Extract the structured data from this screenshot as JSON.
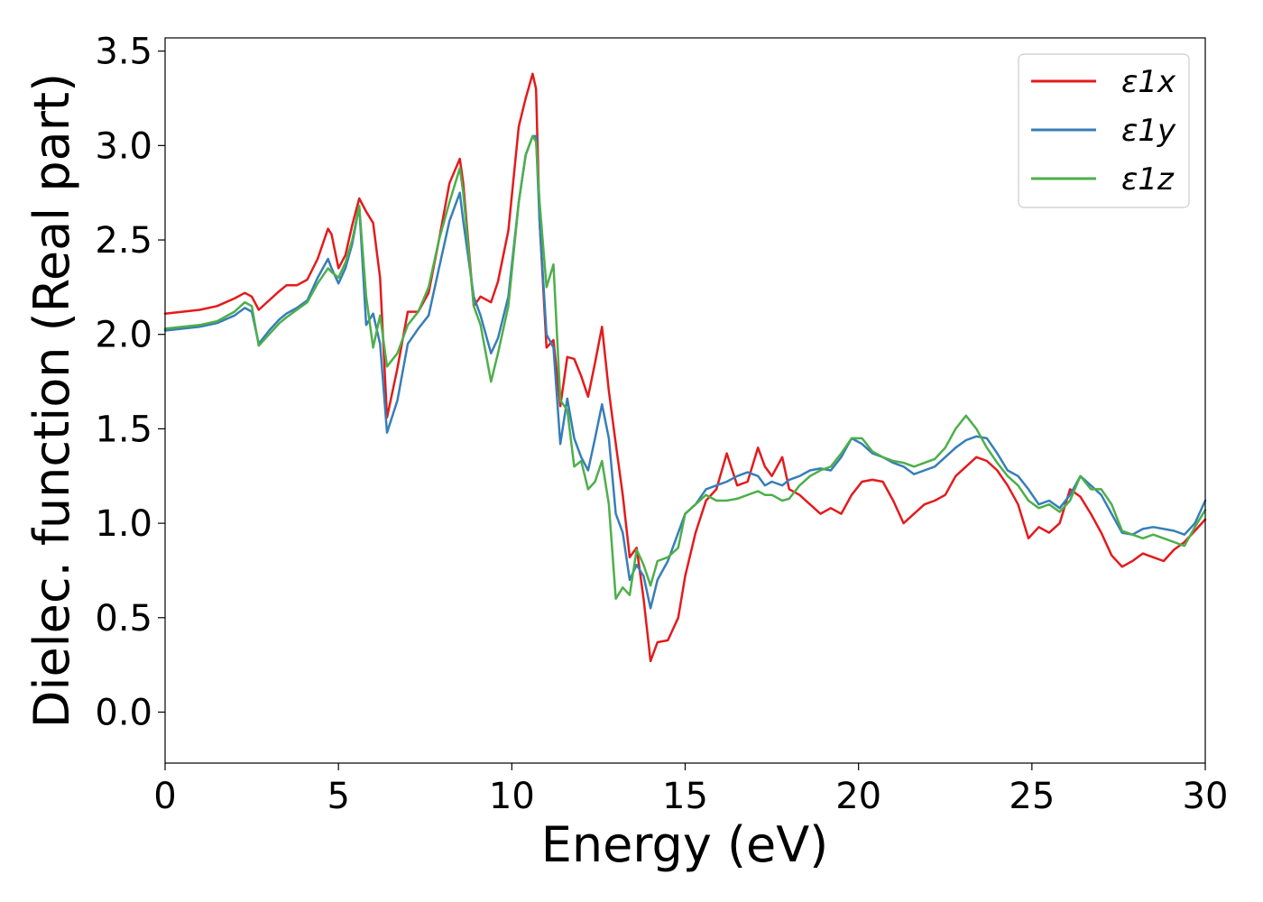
{
  "chart_data": {
    "type": "line",
    "xlabel": "Energy (eV)",
    "ylabel": "Dielec. function (Real part)",
    "xlim": [
      0,
      30
    ],
    "ylim": [
      -0.27,
      3.57
    ],
    "xticks": [
      0,
      5,
      10,
      15,
      20,
      25,
      30
    ],
    "xtick_labels": [
      "0",
      "5",
      "10",
      "15",
      "20",
      "25",
      "30"
    ],
    "yticks": [
      0.0,
      0.5,
      1.0,
      1.5,
      2.0,
      2.5,
      3.0,
      3.5
    ],
    "ytick_labels": [
      "0.0",
      "0.5",
      "1.0",
      "1.5",
      "2.0",
      "2.5",
      "3.0",
      "3.5"
    ],
    "grid": false,
    "legend_position": "top-right",
    "series": [
      {
        "name": "ε1x",
        "color": "#e41a1c",
        "x": [
          0,
          1,
          1.5,
          2,
          2.3,
          2.5,
          2.7,
          3,
          3.3,
          3.5,
          3.8,
          4.1,
          4.4,
          4.7,
          4.8,
          5.0,
          5.2,
          5.4,
          5.6,
          5.8,
          6.0,
          6.2,
          6.4,
          6.7,
          7.0,
          7.3,
          7.6,
          7.9,
          8.2,
          8.5,
          8.6,
          8.9,
          9.1,
          9.4,
          9.6,
          9.9,
          10.2,
          10.4,
          10.6,
          10.7,
          10.8,
          11.0,
          11.2,
          11.4,
          11.6,
          11.8,
          12.0,
          12.2,
          12.4,
          12.6,
          12.8,
          13.0,
          13.2,
          13.4,
          13.6,
          13.8,
          14.0,
          14.2,
          14.5,
          14.8,
          15.0,
          15.3,
          15.6,
          15.9,
          16.2,
          16.5,
          16.8,
          17.1,
          17.3,
          17.5,
          17.8,
          18.0,
          18.3,
          18.6,
          18.9,
          19.2,
          19.5,
          19.8,
          20.1,
          20.4,
          20.7,
          21.0,
          21.3,
          21.6,
          21.9,
          22.2,
          22.5,
          22.8,
          23.1,
          23.4,
          23.7,
          24.0,
          24.3,
          24.6,
          24.9,
          25.2,
          25.5,
          25.8,
          26.1,
          26.4,
          26.7,
          27.0,
          27.3,
          27.6,
          27.9,
          28.2,
          28.5,
          28.8,
          29.1,
          29.4,
          29.7,
          30
        ],
        "y": [
          2.11,
          2.13,
          2.15,
          2.19,
          2.22,
          2.2,
          2.13,
          2.18,
          2.23,
          2.26,
          2.26,
          2.29,
          2.4,
          2.56,
          2.53,
          2.35,
          2.42,
          2.58,
          2.72,
          2.65,
          2.59,
          2.3,
          1.56,
          1.82,
          2.12,
          2.12,
          2.22,
          2.5,
          2.8,
          2.93,
          2.8,
          2.15,
          2.2,
          2.17,
          2.28,
          2.55,
          3.1,
          3.25,
          3.38,
          3.3,
          2.6,
          1.93,
          1.97,
          1.62,
          1.88,
          1.87,
          1.78,
          1.67,
          1.85,
          2.04,
          1.7,
          1.42,
          1.15,
          0.82,
          0.87,
          0.6,
          0.27,
          0.37,
          0.38,
          0.5,
          0.72,
          0.95,
          1.12,
          1.18,
          1.37,
          1.2,
          1.22,
          1.4,
          1.3,
          1.25,
          1.35,
          1.18,
          1.15,
          1.1,
          1.05,
          1.08,
          1.05,
          1.15,
          1.22,
          1.23,
          1.22,
          1.12,
          1.0,
          1.05,
          1.1,
          1.12,
          1.15,
          1.25,
          1.3,
          1.35,
          1.33,
          1.28,
          1.2,
          1.1,
          0.92,
          0.98,
          0.95,
          1.0,
          1.18,
          1.14,
          1.05,
          0.95,
          0.83,
          0.77,
          0.8,
          0.84,
          0.82,
          0.8,
          0.86,
          0.9,
          0.96,
          1.02
        ]
      },
      {
        "name": "ε1y",
        "color": "#377eb8",
        "x": [
          0,
          1,
          1.5,
          2,
          2.3,
          2.5,
          2.7,
          3,
          3.3,
          3.5,
          3.8,
          4.1,
          4.4,
          4.7,
          4.8,
          5.0,
          5.2,
          5.4,
          5.6,
          5.8,
          6.0,
          6.2,
          6.4,
          6.7,
          7.0,
          7.3,
          7.6,
          7.9,
          8.2,
          8.5,
          8.6,
          8.9,
          9.1,
          9.4,
          9.6,
          9.9,
          10.2,
          10.4,
          10.6,
          10.7,
          10.8,
          11.0,
          11.2,
          11.4,
          11.6,
          11.8,
          12.0,
          12.2,
          12.4,
          12.6,
          12.8,
          13.0,
          13.2,
          13.4,
          13.6,
          13.8,
          14.0,
          14.2,
          14.5,
          14.8,
          15.0,
          15.3,
          15.6,
          15.9,
          16.2,
          16.5,
          16.8,
          17.1,
          17.3,
          17.5,
          17.8,
          18.0,
          18.3,
          18.6,
          18.9,
          19.2,
          19.5,
          19.8,
          20.1,
          20.4,
          20.7,
          21.0,
          21.3,
          21.6,
          21.9,
          22.2,
          22.5,
          22.8,
          23.1,
          23.4,
          23.7,
          24.0,
          24.3,
          24.6,
          24.9,
          25.2,
          25.5,
          25.8,
          26.1,
          26.4,
          26.7,
          27.0,
          27.3,
          27.6,
          27.9,
          28.2,
          28.5,
          28.8,
          29.1,
          29.4,
          29.7,
          30
        ],
        "y": [
          2.02,
          2.04,
          2.06,
          2.1,
          2.14,
          2.12,
          1.95,
          2.02,
          2.08,
          2.11,
          2.14,
          2.18,
          2.3,
          2.4,
          2.35,
          2.27,
          2.35,
          2.48,
          2.68,
          2.05,
          2.11,
          1.95,
          1.48,
          1.65,
          1.95,
          2.03,
          2.1,
          2.35,
          2.6,
          2.75,
          2.6,
          2.2,
          2.1,
          1.9,
          1.98,
          2.2,
          2.7,
          2.95,
          3.05,
          3.05,
          2.6,
          2.0,
          1.93,
          1.42,
          1.66,
          1.45,
          1.35,
          1.28,
          1.45,
          1.63,
          1.45,
          1.05,
          0.95,
          0.7,
          0.78,
          0.72,
          0.55,
          0.7,
          0.8,
          0.95,
          1.05,
          1.1,
          1.18,
          1.2,
          1.22,
          1.25,
          1.27,
          1.25,
          1.2,
          1.22,
          1.2,
          1.23,
          1.25,
          1.28,
          1.29,
          1.28,
          1.35,
          1.45,
          1.42,
          1.37,
          1.35,
          1.32,
          1.3,
          1.26,
          1.28,
          1.3,
          1.35,
          1.4,
          1.44,
          1.46,
          1.45,
          1.37,
          1.28,
          1.25,
          1.18,
          1.1,
          1.12,
          1.08,
          1.15,
          1.25,
          1.2,
          1.15,
          1.05,
          0.95,
          0.94,
          0.97,
          0.98,
          0.97,
          0.96,
          0.94,
          1.0,
          1.12
        ]
      },
      {
        "name": "ε1z",
        "color": "#4daf4a",
        "x": [
          0,
          1,
          1.5,
          2,
          2.3,
          2.5,
          2.7,
          3,
          3.3,
          3.5,
          3.8,
          4.1,
          4.4,
          4.7,
          4.8,
          5.0,
          5.2,
          5.4,
          5.6,
          5.8,
          6.0,
          6.2,
          6.4,
          6.7,
          7.0,
          7.3,
          7.6,
          7.9,
          8.2,
          8.5,
          8.6,
          8.9,
          9.1,
          9.4,
          9.6,
          9.9,
          10.2,
          10.4,
          10.6,
          10.7,
          10.8,
          11.0,
          11.2,
          11.4,
          11.6,
          11.8,
          12.0,
          12.2,
          12.4,
          12.6,
          12.8,
          13.0,
          13.2,
          13.4,
          13.6,
          13.8,
          14.0,
          14.2,
          14.5,
          14.8,
          15.0,
          15.3,
          15.6,
          15.9,
          16.2,
          16.5,
          16.8,
          17.1,
          17.3,
          17.5,
          17.8,
          18.0,
          18.3,
          18.6,
          18.9,
          19.2,
          19.5,
          19.8,
          20.1,
          20.4,
          20.7,
          21.0,
          21.3,
          21.6,
          21.9,
          22.2,
          22.5,
          22.8,
          23.1,
          23.4,
          23.7,
          24.0,
          24.3,
          24.6,
          24.9,
          25.2,
          25.5,
          25.8,
          26.1,
          26.4,
          26.7,
          27.0,
          27.3,
          27.6,
          27.9,
          28.2,
          28.5,
          28.8,
          29.1,
          29.4,
          29.7,
          30
        ],
        "y": [
          2.03,
          2.05,
          2.07,
          2.12,
          2.17,
          2.15,
          1.94,
          2.0,
          2.06,
          2.09,
          2.13,
          2.17,
          2.27,
          2.35,
          2.33,
          2.3,
          2.38,
          2.5,
          2.68,
          2.2,
          1.93,
          2.1,
          1.83,
          1.9,
          2.05,
          2.12,
          2.25,
          2.5,
          2.7,
          2.88,
          2.75,
          2.15,
          2.05,
          1.75,
          1.9,
          2.15,
          2.7,
          2.95,
          3.05,
          3.02,
          2.7,
          2.25,
          2.37,
          1.65,
          1.6,
          1.3,
          1.33,
          1.18,
          1.22,
          1.33,
          1.1,
          0.6,
          0.66,
          0.62,
          0.86,
          0.78,
          0.67,
          0.8,
          0.82,
          0.87,
          1.05,
          1.1,
          1.15,
          1.12,
          1.12,
          1.13,
          1.15,
          1.17,
          1.15,
          1.15,
          1.12,
          1.13,
          1.2,
          1.25,
          1.28,
          1.3,
          1.37,
          1.45,
          1.45,
          1.38,
          1.35,
          1.33,
          1.32,
          1.3,
          1.32,
          1.34,
          1.4,
          1.5,
          1.57,
          1.5,
          1.4,
          1.32,
          1.25,
          1.2,
          1.12,
          1.08,
          1.1,
          1.06,
          1.12,
          1.25,
          1.18,
          1.18,
          1.1,
          0.96,
          0.94,
          0.92,
          0.94,
          0.92,
          0.9,
          0.88,
          0.98,
          1.07
        ]
      }
    ]
  }
}
